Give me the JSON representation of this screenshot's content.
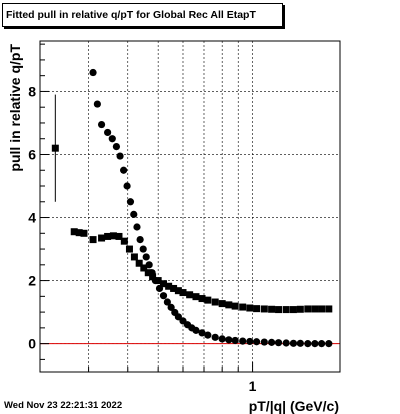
{
  "title": "Fitted pull in relative q/pT  for Global Rec All EtapT",
  "timestamp": "Wed Nov 23 22:21:31 2022",
  "colors": {
    "axis": "#000000",
    "grid": "#000000",
    "reference_line": "#dd0000",
    "markers": "#000000"
  },
  "chart_data": {
    "type": "scatter",
    "title": "Fitted pull in relative q/pT  for Global Rec All EtapT",
    "xlabel": "pT/|q| (GeV/c)",
    "ylabel": "pull in relative q/pT",
    "xscale": "log",
    "xlim": [
      0.21,
      1.9
    ],
    "ylim": [
      -0.9,
      9.6
    ],
    "x_ticks": [
      {
        "value": 1,
        "label": "1"
      }
    ],
    "y_ticks": [
      {
        "value": 0,
        "label": "0"
      },
      {
        "value": 2,
        "label": "2"
      },
      {
        "value": 4,
        "label": "4"
      },
      {
        "value": 6,
        "label": "6"
      },
      {
        "value": 8,
        "label": "8"
      }
    ],
    "grid": true,
    "reference_line": {
      "y": 0
    },
    "series": [
      {
        "marker": "square",
        "points": [
          {
            "x": 0.235,
            "y": 6.2,
            "ey": 1.7
          },
          {
            "x": 0.27,
            "y": 3.55
          },
          {
            "x": 0.28,
            "y": 3.52
          },
          {
            "x": 0.29,
            "y": 3.5
          },
          {
            "x": 0.31,
            "y": 3.3
          },
          {
            "x": 0.33,
            "y": 3.35
          },
          {
            "x": 0.345,
            "y": 3.4
          },
          {
            "x": 0.36,
            "y": 3.42
          },
          {
            "x": 0.375,
            "y": 3.4
          },
          {
            "x": 0.39,
            "y": 3.25
          },
          {
            "x": 0.405,
            "y": 3.0
          },
          {
            "x": 0.42,
            "y": 2.75
          },
          {
            "x": 0.435,
            "y": 2.55
          },
          {
            "x": 0.45,
            "y": 2.4
          },
          {
            "x": 0.465,
            "y": 2.25
          },
          {
            "x": 0.48,
            "y": 2.12
          },
          {
            "x": 0.5,
            "y": 2.0
          },
          {
            "x": 0.52,
            "y": 1.9
          },
          {
            "x": 0.54,
            "y": 1.82
          },
          {
            "x": 0.56,
            "y": 1.75
          },
          {
            "x": 0.58,
            "y": 1.68
          },
          {
            "x": 0.6,
            "y": 1.62
          },
          {
            "x": 0.63,
            "y": 1.55
          },
          {
            "x": 0.66,
            "y": 1.49
          },
          {
            "x": 0.69,
            "y": 1.43
          },
          {
            "x": 0.72,
            "y": 1.38
          },
          {
            "x": 0.76,
            "y": 1.32
          },
          {
            "x": 0.8,
            "y": 1.27
          },
          {
            "x": 0.84,
            "y": 1.23
          },
          {
            "x": 0.88,
            "y": 1.19
          },
          {
            "x": 0.93,
            "y": 1.16
          },
          {
            "x": 0.98,
            "y": 1.13
          },
          {
            "x": 1.03,
            "y": 1.11
          },
          {
            "x": 1.09,
            "y": 1.1
          },
          {
            "x": 1.15,
            "y": 1.09
          },
          {
            "x": 1.21,
            "y": 1.08
          },
          {
            "x": 1.28,
            "y": 1.08
          },
          {
            "x": 1.35,
            "y": 1.08
          },
          {
            "x": 1.42,
            "y": 1.09
          },
          {
            "x": 1.5,
            "y": 1.1
          },
          {
            "x": 1.58,
            "y": 1.1
          },
          {
            "x": 1.66,
            "y": 1.1
          },
          {
            "x": 1.75,
            "y": 1.1
          }
        ]
      },
      {
        "marker": "circle",
        "points": [
          {
            "x": 0.31,
            "y": 8.6
          },
          {
            "x": 0.32,
            "y": 7.6
          },
          {
            "x": 0.33,
            "y": 6.95
          },
          {
            "x": 0.345,
            "y": 6.7
          },
          {
            "x": 0.357,
            "y": 6.5
          },
          {
            "x": 0.368,
            "y": 6.25
          },
          {
            "x": 0.378,
            "y": 5.95
          },
          {
            "x": 0.388,
            "y": 5.5
          },
          {
            "x": 0.398,
            "y": 5.0
          },
          {
            "x": 0.408,
            "y": 4.5
          },
          {
            "x": 0.418,
            "y": 4.1
          },
          {
            "x": 0.428,
            "y": 3.7
          },
          {
            "x": 0.438,
            "y": 3.3
          },
          {
            "x": 0.448,
            "y": 3.0
          },
          {
            "x": 0.458,
            "y": 2.75
          },
          {
            "x": 0.468,
            "y": 2.5
          },
          {
            "x": 0.478,
            "y": 2.25
          },
          {
            "x": 0.49,
            "y": 2.0
          },
          {
            "x": 0.505,
            "y": 1.75
          },
          {
            "x": 0.52,
            "y": 1.52
          },
          {
            "x": 0.535,
            "y": 1.32
          },
          {
            "x": 0.55,
            "y": 1.15
          },
          {
            "x": 0.565,
            "y": 0.99
          },
          {
            "x": 0.58,
            "y": 0.85
          },
          {
            "x": 0.6,
            "y": 0.72
          },
          {
            "x": 0.62,
            "y": 0.6
          },
          {
            "x": 0.64,
            "y": 0.5
          },
          {
            "x": 0.66,
            "y": 0.42
          },
          {
            "x": 0.69,
            "y": 0.34
          },
          {
            "x": 0.72,
            "y": 0.27
          },
          {
            "x": 0.76,
            "y": 0.2
          },
          {
            "x": 0.8,
            "y": 0.15
          },
          {
            "x": 0.84,
            "y": 0.12
          },
          {
            "x": 0.88,
            "y": 0.1
          },
          {
            "x": 0.93,
            "y": 0.08
          },
          {
            "x": 0.98,
            "y": 0.07
          },
          {
            "x": 1.03,
            "y": 0.06
          },
          {
            "x": 1.09,
            "y": 0.05
          },
          {
            "x": 1.15,
            "y": 0.04
          },
          {
            "x": 1.21,
            "y": 0.03
          },
          {
            "x": 1.28,
            "y": 0.02
          },
          {
            "x": 1.35,
            "y": 0.01
          },
          {
            "x": 1.42,
            "y": 0.01
          },
          {
            "x": 1.5,
            "y": 0.0
          },
          {
            "x": 1.58,
            "y": 0.0
          },
          {
            "x": 1.66,
            "y": 0.0
          },
          {
            "x": 1.75,
            "y": 0.0
          }
        ]
      }
    ]
  }
}
